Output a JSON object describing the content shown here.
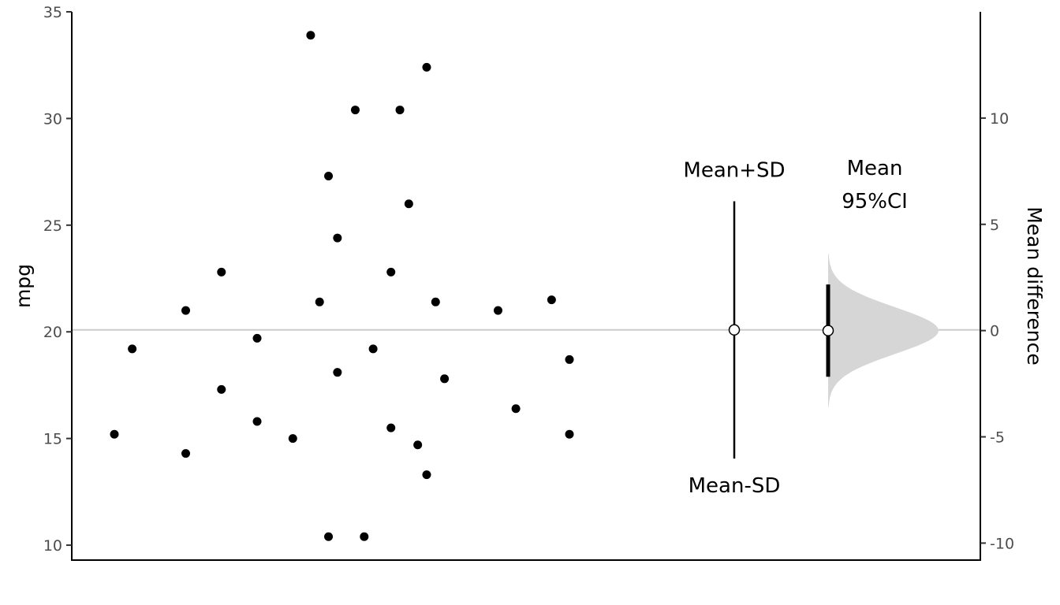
{
  "chart_data": {
    "type": "scatter",
    "title": "",
    "ylabel": "mpg",
    "y2label": "Mean difference",
    "ylim": [
      9.3,
      35
    ],
    "y2lim": [
      -10.8,
      15
    ],
    "yticks": [
      10,
      15,
      20,
      25,
      30,
      35
    ],
    "y2ticks": [
      -10,
      -5,
      0,
      5,
      10
    ],
    "grid": false,
    "reference_line": 20.09,
    "points": [
      {
        "x": 0.04,
        "y": 15.2
      },
      {
        "x": 0.06,
        "y": 19.2
      },
      {
        "x": 0.12,
        "y": 21.0
      },
      {
        "x": 0.12,
        "y": 14.3
      },
      {
        "x": 0.16,
        "y": 22.8
      },
      {
        "x": 0.16,
        "y": 17.3
      },
      {
        "x": 0.2,
        "y": 19.7
      },
      {
        "x": 0.2,
        "y": 15.8
      },
      {
        "x": 0.24,
        "y": 15.0
      },
      {
        "x": 0.26,
        "y": 33.9
      },
      {
        "x": 0.27,
        "y": 21.4
      },
      {
        "x": 0.28,
        "y": 10.4
      },
      {
        "x": 0.28,
        "y": 27.3
      },
      {
        "x": 0.29,
        "y": 24.4
      },
      {
        "x": 0.29,
        "y": 18.1
      },
      {
        "x": 0.31,
        "y": 30.4
      },
      {
        "x": 0.32,
        "y": 10.4
      },
      {
        "x": 0.33,
        "y": 19.2
      },
      {
        "x": 0.35,
        "y": 22.8
      },
      {
        "x": 0.35,
        "y": 15.5
      },
      {
        "x": 0.36,
        "y": 30.4
      },
      {
        "x": 0.37,
        "y": 26.0
      },
      {
        "x": 0.38,
        "y": 14.7
      },
      {
        "x": 0.39,
        "y": 32.4
      },
      {
        "x": 0.39,
        "y": 13.3
      },
      {
        "x": 0.4,
        "y": 21.4
      },
      {
        "x": 0.41,
        "y": 17.8
      },
      {
        "x": 0.47,
        "y": 21.0
      },
      {
        "x": 0.49,
        "y": 16.4
      },
      {
        "x": 0.53,
        "y": 21.5
      },
      {
        "x": 0.55,
        "y": 18.7
      },
      {
        "x": 0.55,
        "y": 15.2
      }
    ],
    "mean_sd": {
      "mean": 20.09,
      "upper": 26.12,
      "lower": 14.06,
      "upper_label": "Mean+SD",
      "lower_label": "Mean-SD"
    },
    "mean_ci": {
      "mean": 0,
      "ci_low": -2.17,
      "ci_high": 2.17,
      "label_line1": "Mean",
      "label_line2": "95%CI"
    },
    "density": {
      "sd": 1.1,
      "min": -3.6,
      "max": 3.6
    }
  }
}
